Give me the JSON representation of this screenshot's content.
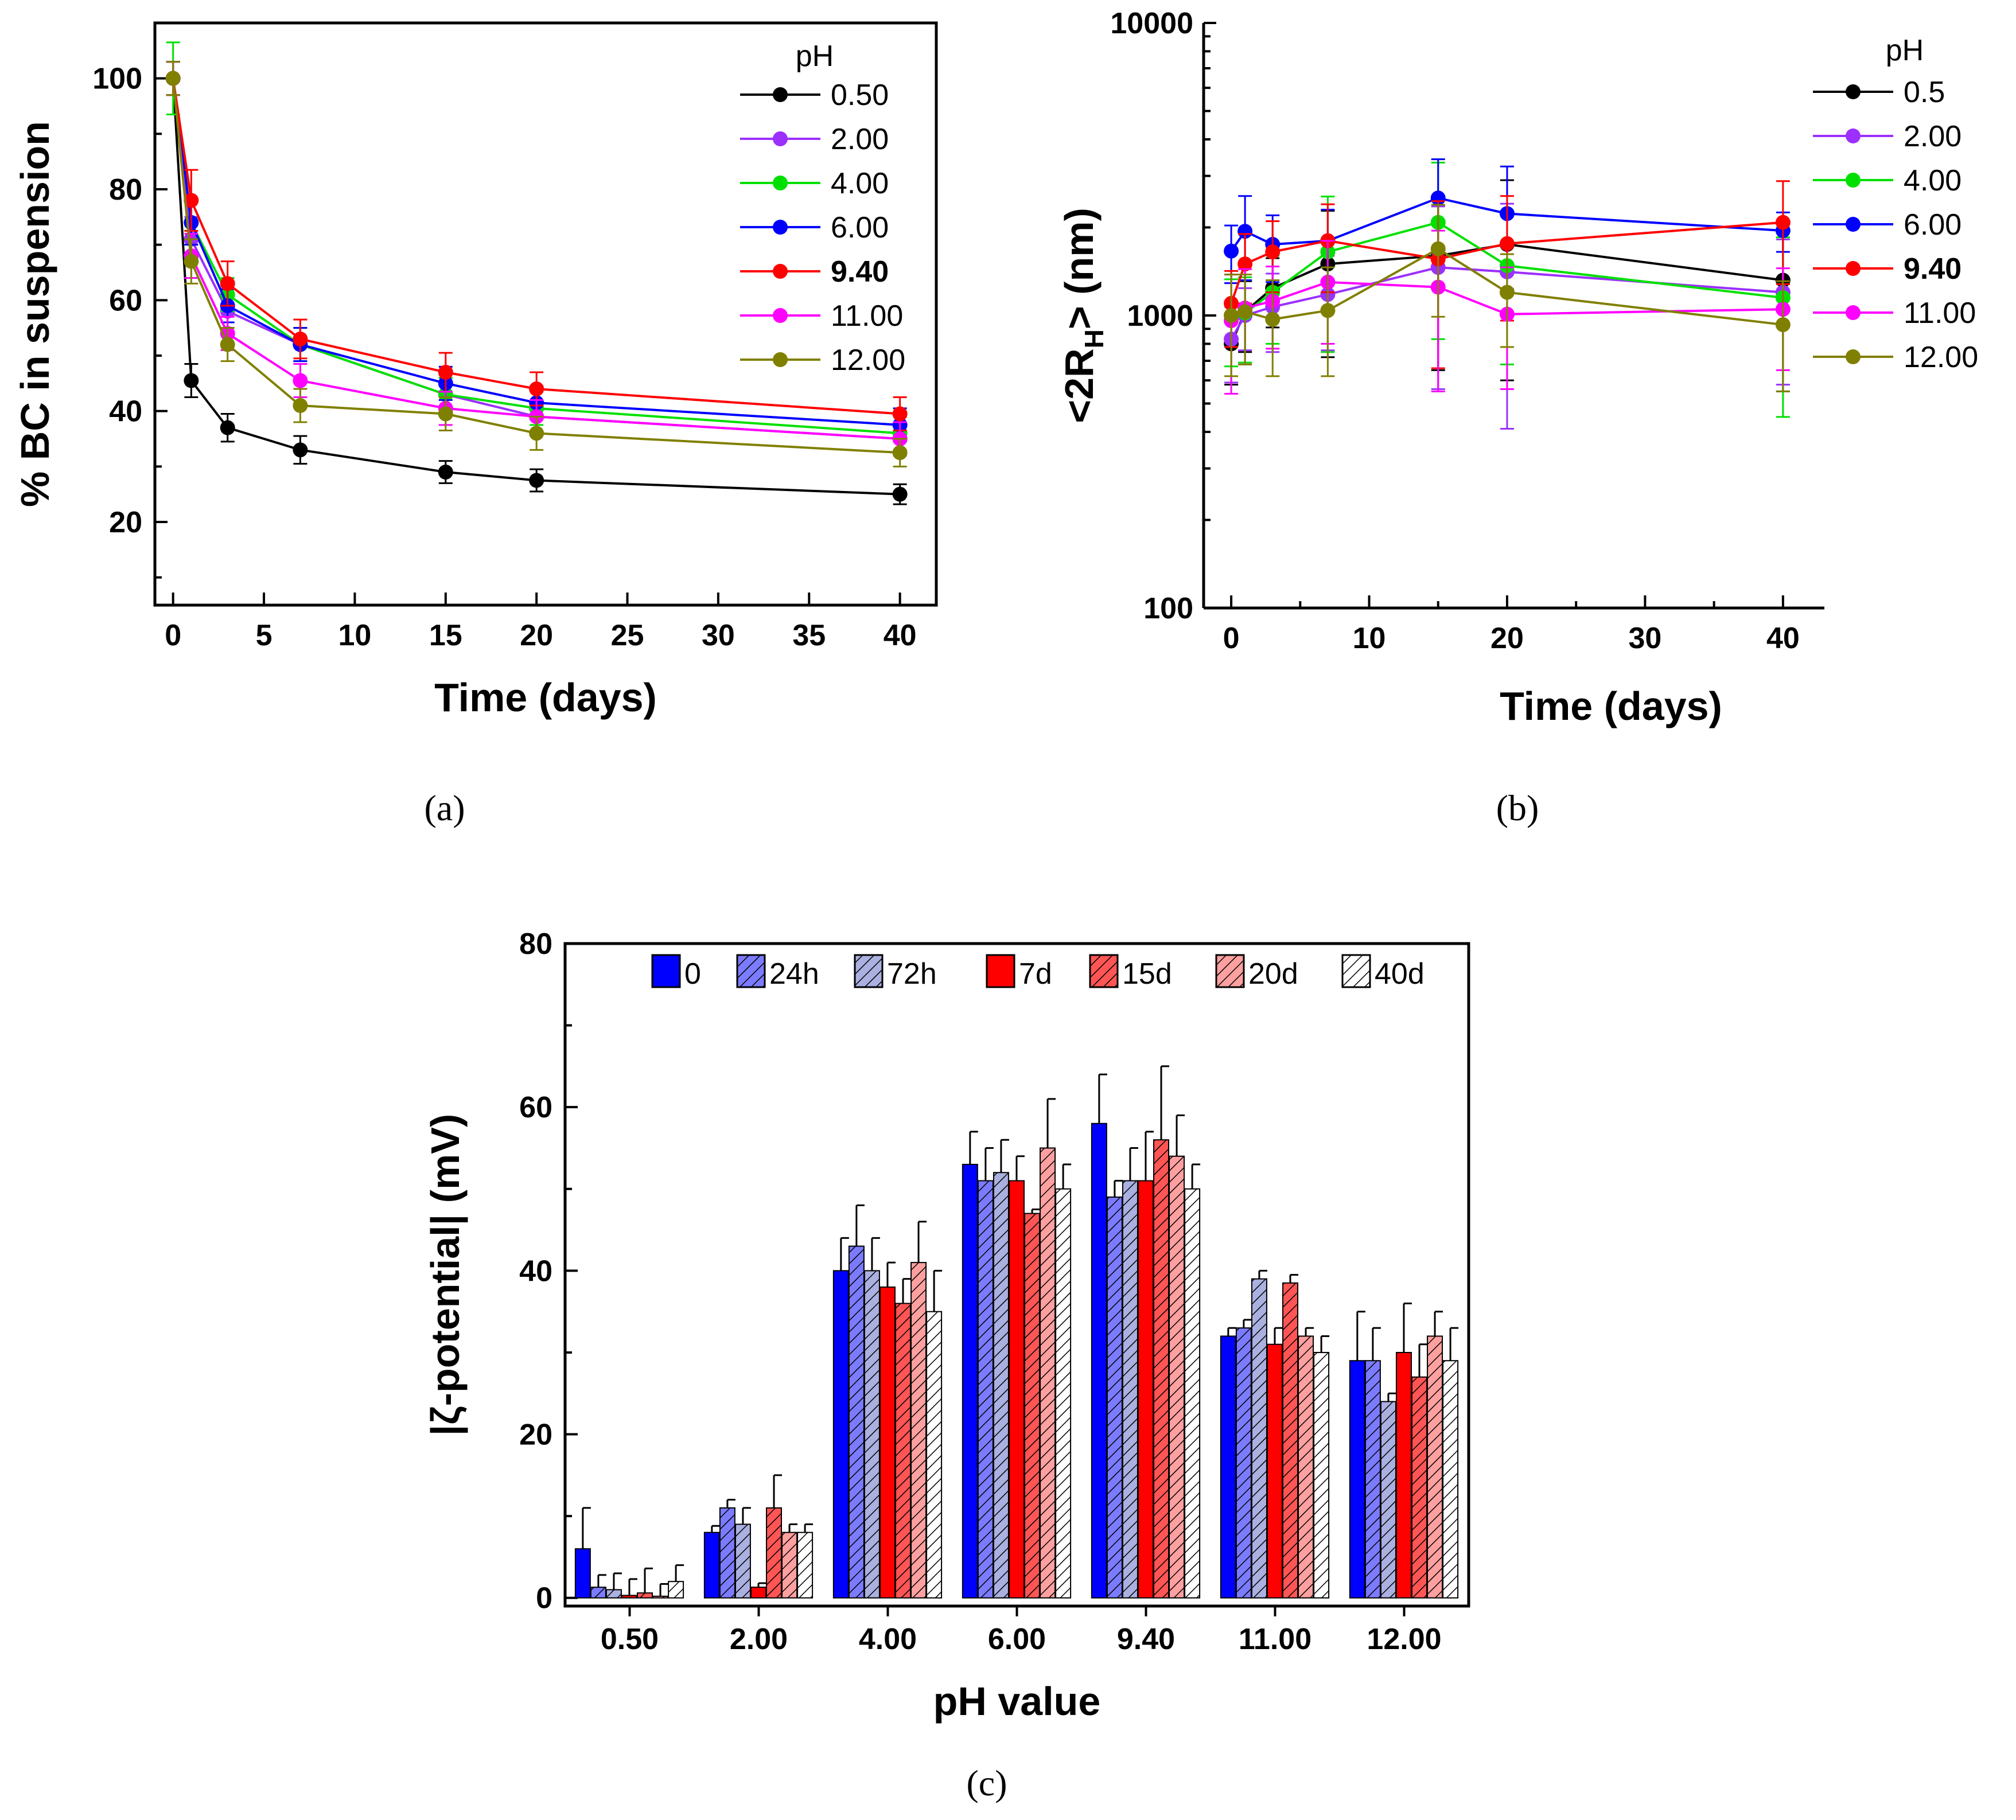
{
  "chart_data": [
    {
      "type": "line",
      "panel_label": "(a)",
      "xlabel": "Time (days)",
      "ylabel": "% BC in suspension",
      "xlim": [
        -1,
        42
      ],
      "ylim": [
        5,
        110
      ],
      "xticks": [
        "0",
        "5",
        "10",
        "15",
        "20",
        "25",
        "30",
        "35",
        "40"
      ],
      "yticks": [
        "20",
        "40",
        "60",
        "80",
        "100"
      ],
      "legend_title": "pH",
      "legend_position": "top-right",
      "x": [
        0,
        1,
        3,
        7,
        15,
        20,
        40
      ],
      "series": [
        {
          "name": "0.50",
          "bold": false,
          "color": "#000000",
          "values": [
            100,
            45.5,
            37,
            33,
            29,
            27.5,
            25
          ],
          "errors": [
            3,
            3,
            2.5,
            2.5,
            2,
            2,
            1.8
          ]
        },
        {
          "name": "2.00",
          "bold": false,
          "color": "#9b30ff",
          "values": [
            100,
            71,
            58,
            52,
            43,
            39,
            35
          ],
          "errors": [
            3,
            4,
            3,
            3,
            3,
            3,
            3
          ]
        },
        {
          "name": "4.00",
          "bold": false,
          "color": "#00e000",
          "values": [
            100,
            74,
            61,
            52,
            43,
            40.5,
            36
          ],
          "errors": [
            6.5,
            4,
            3,
            3,
            3,
            3,
            3
          ]
        },
        {
          "name": "6.00",
          "bold": false,
          "color": "#0000ff",
          "values": [
            100,
            74,
            59,
            52,
            45,
            41.5,
            37.5
          ],
          "errors": [
            3,
            4,
            3,
            3,
            3,
            3,
            3
          ]
        },
        {
          "name": "9.40",
          "bold": true,
          "color": "#ff0000",
          "values": [
            100,
            78,
            63,
            53,
            47,
            44,
            39.5
          ],
          "errors": [
            3,
            5.5,
            4,
            3.5,
            3.5,
            3,
            3
          ]
        },
        {
          "name": "11.00",
          "bold": false,
          "color": "#ff00ff",
          "values": [
            100,
            68,
            54,
            45.5,
            40.5,
            39,
            35
          ],
          "errors": [
            3,
            4,
            3,
            3,
            3,
            3,
            3
          ]
        },
        {
          "name": "12.00",
          "bold": false,
          "color": "#808000",
          "values": [
            100,
            67,
            52,
            41,
            39.5,
            36,
            32.5
          ],
          "errors": [
            3,
            4,
            3,
            3,
            3,
            3,
            2.5
          ]
        }
      ]
    },
    {
      "type": "line",
      "panel_label": "(b)",
      "xlabel": "Time (days)",
      "ylabel_prefix": "<2R",
      "ylabel_sub": "H",
      "ylabel_suffix": "> (nm)",
      "yscale": "log",
      "xlim": [
        -2,
        43
      ],
      "ylim": [
        100,
        10000
      ],
      "xticks": [
        "0",
        "10",
        "20",
        "30",
        "40"
      ],
      "yticks": [
        "100",
        "1000",
        "10000"
      ],
      "legend_title": "pH",
      "legend_position": "top-right",
      "x": [
        0,
        1,
        3,
        7,
        15,
        20,
        40
      ],
      "series": [
        {
          "name": "0.5",
          "bold": false,
          "color": "#000000",
          "values": [
            800,
            1030,
            1240,
            1500,
            1600,
            1750,
            1320
          ],
          "errors": [
            220,
            280,
            330,
            780,
            950,
            1150,
            770
          ]
        },
        {
          "name": "2.00",
          "bold": false,
          "color": "#9b30ff",
          "values": [
            830,
            1000,
            1070,
            1180,
            1460,
            1410,
            1200
          ],
          "errors": [
            240,
            240,
            320,
            420,
            900,
            1000,
            620
          ]
        },
        {
          "name": "4.00",
          "bold": false,
          "color": "#00e000",
          "values": [
            1000,
            1020,
            1200,
            1650,
            2080,
            1480,
            1150
          ],
          "errors": [
            330,
            330,
            400,
            900,
            1250,
            800,
            700
          ]
        },
        {
          "name": "6.00",
          "bold": false,
          "color": "#0000ff",
          "values": [
            1660,
            1940,
            1750,
            1800,
            2520,
            2230,
            1950
          ],
          "errors": [
            370,
            620,
            450,
            500,
            900,
            1000,
            300
          ]
        },
        {
          "name": "9.40",
          "bold": true,
          "color": "#ff0000",
          "values": [
            1100,
            1500,
            1650,
            1800,
            1560,
            1760,
            2080
          ],
          "errors": [
            320,
            400,
            450,
            600,
            900,
            800,
            800
          ]
        },
        {
          "name": "11.00",
          "bold": false,
          "color": "#ff00ff",
          "values": [
            960,
            1060,
            1120,
            1300,
            1250,
            1010,
            1050
          ],
          "errors": [
            420,
            380,
            350,
            500,
            700,
            450,
            400
          ]
        },
        {
          "name": "12.00",
          "bold": false,
          "color": "#808000",
          "values": [
            1000,
            1030,
            970,
            1040,
            1690,
            1200,
            930
          ],
          "errors": [
            380,
            350,
            350,
            420,
            700,
            420,
            380
          ]
        }
      ]
    },
    {
      "type": "bar",
      "panel_label": "(c)",
      "xlabel": "pH value",
      "ylabel": "|ζ-potential| (mV)",
      "ylim": [
        -1,
        80
      ],
      "yticks": [
        "0",
        "20",
        "40",
        "60",
        "80"
      ],
      "categories": [
        "0.50",
        "2.00",
        "4.00",
        "6.00",
        "9.40",
        "11.00",
        "12.00"
      ],
      "legend_position": "top",
      "series": [
        {
          "name": "0",
          "color": "#0000ff",
          "hatch": false,
          "values": [
            6,
            8,
            40,
            53,
            58,
            32,
            29
          ],
          "errors": [
            5,
            0.8,
            4,
            4,
            6,
            1,
            6
          ]
        },
        {
          "name": "24h",
          "color": "#7b7bff",
          "hatch": true,
          "values": [
            1.3,
            11,
            43,
            51,
            49,
            33,
            29
          ],
          "errors": [
            1.5,
            1,
            5,
            4,
            2,
            1,
            4
          ]
        },
        {
          "name": "72h",
          "color": "#aab0e0",
          "hatch": true,
          "values": [
            1,
            9,
            40,
            52,
            51,
            39,
            24
          ],
          "errors": [
            2,
            2,
            4,
            4,
            4,
            1,
            1
          ]
        },
        {
          "name": "7d",
          "color": "#ff0000",
          "hatch": false,
          "values": [
            0.3,
            1.3,
            38,
            51,
            51,
            31,
            30
          ],
          "errors": [
            2,
            0.5,
            3,
            3,
            6,
            2,
            6
          ]
        },
        {
          "name": "15d",
          "color": "#ff5555",
          "hatch": true,
          "values": [
            0.6,
            11,
            36,
            47,
            56,
            38.5,
            27
          ],
          "errors": [
            3,
            4,
            3,
            0.5,
            9,
            1,
            4
          ]
        },
        {
          "name": "20d",
          "color": "#ffa0a0",
          "hatch": true,
          "values": [
            0.2,
            8,
            41,
            55,
            54,
            32,
            32
          ],
          "errors": [
            1.5,
            1,
            5,
            6,
            5,
            1,
            3
          ]
        },
        {
          "name": "40d",
          "color": "#ffffff",
          "hatch": true,
          "values": [
            2,
            8,
            35,
            50,
            50,
            30,
            29
          ],
          "errors": [
            2,
            1,
            5,
            3,
            3,
            2,
            4
          ]
        }
      ]
    }
  ]
}
